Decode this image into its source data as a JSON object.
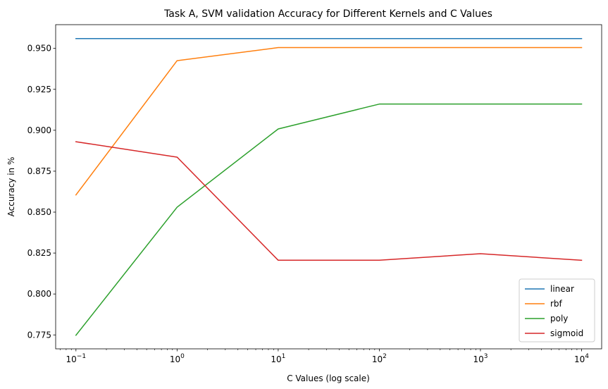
{
  "chart_data": {
    "type": "line",
    "title": "Task A, SVM validation Accuracy for Different Kernels and C Values",
    "xlabel": "C Values (log scale)",
    "ylabel": "Accuracy in %",
    "x_scale": "log",
    "x": [
      0.1,
      1,
      10,
      100,
      1000,
      10000
    ],
    "x_tick_labels": [
      {
        "base": "10",
        "exp": "−1"
      },
      {
        "base": "10",
        "exp": "0"
      },
      {
        "base": "10",
        "exp": "1"
      },
      {
        "base": "10",
        "exp": "2"
      },
      {
        "base": "10",
        "exp": "3"
      },
      {
        "base": "10",
        "exp": "4"
      }
    ],
    "xlim": [
      0.063,
      15800
    ],
    "ylim": [
      0.7665,
      0.9645
    ],
    "y_ticks": [
      "0.775",
      "0.800",
      "0.825",
      "0.850",
      "0.875",
      "0.900",
      "0.925",
      "0.950"
    ],
    "grid": false,
    "legend_position": "lower right",
    "series": [
      {
        "name": "linear",
        "color": "#1f77b4",
        "values": [
          0.956,
          0.956,
          0.956,
          0.956,
          0.956,
          0.956
        ]
      },
      {
        "name": "rbf",
        "color": "#ff7f0e",
        "values": [
          0.8605,
          0.9425,
          0.9505,
          0.9505,
          0.9505,
          0.9505
        ]
      },
      {
        "name": "poly",
        "color": "#2ca02c",
        "values": [
          0.7748,
          0.853,
          0.9008,
          0.916,
          0.916,
          0.916
        ]
      },
      {
        "name": "sigmoid",
        "color": "#d62728",
        "values": [
          0.893,
          0.8836,
          0.8206,
          0.8206,
          0.8246,
          0.8206
        ]
      }
    ]
  }
}
